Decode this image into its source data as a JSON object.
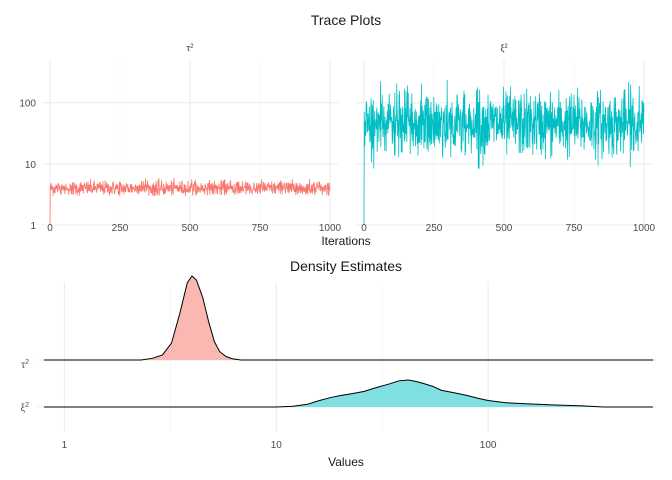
{
  "chart_data": [
    {
      "type": "line",
      "title": "Trace Plots",
      "xlabel": "Iterations",
      "ylabel": "",
      "y_scale": "log10",
      "xlim": [
        0,
        1000
      ],
      "ylim": [
        1,
        500
      ],
      "x_ticks": [
        "0",
        "250",
        "500",
        "750",
        "1000"
      ],
      "y_ticks": [
        "1",
        "10",
        "100"
      ],
      "grid": true,
      "panels": [
        {
          "name": "τ",
          "superscript": "2",
          "color": "#F8766D",
          "start_value": 1,
          "typical_value": 4,
          "range": [
            3,
            6
          ],
          "n_iterations": 1000
        },
        {
          "name": "ξ",
          "superscript": "2",
          "color": "#00BFC4",
          "start_value": 1,
          "typical_value": 45,
          "range": [
            8,
            420
          ],
          "n_iterations": 1000
        }
      ]
    },
    {
      "type": "area",
      "title": "Density Estimates",
      "xlabel": "Values",
      "x_scale": "log10",
      "xlim": [
        0.75,
        620
      ],
      "x_ticks": [
        "1",
        "10",
        "100"
      ],
      "grid": true,
      "series": [
        {
          "name": "τ",
          "superscript": "2",
          "color": "#F8766D",
          "fill": "#FBB7B2",
          "x": [
            2.3,
            2.6,
            2.9,
            3.2,
            3.5,
            3.8,
            4.0,
            4.2,
            4.5,
            4.8,
            5.1,
            5.4,
            5.8,
            6.2,
            6.8
          ],
          "density": [
            0.0,
            0.02,
            0.06,
            0.2,
            0.55,
            0.92,
            1.0,
            0.95,
            0.74,
            0.45,
            0.22,
            0.1,
            0.04,
            0.015,
            0.0
          ],
          "x_range": [
            0.8,
            600
          ]
        },
        {
          "name": "ξ",
          "superscript": "2",
          "color": "#00BFC4",
          "fill": "#7FDFE1",
          "x": [
            10,
            12,
            14,
            16,
            18,
            20,
            23,
            26,
            30,
            34,
            38,
            42,
            46,
            50,
            55,
            60,
            70,
            80,
            90,
            100,
            120,
            150,
            200,
            280,
            350
          ],
          "density": [
            0.0,
            0.03,
            0.1,
            0.24,
            0.35,
            0.42,
            0.5,
            0.58,
            0.73,
            0.85,
            0.97,
            1.0,
            0.94,
            0.86,
            0.76,
            0.62,
            0.52,
            0.42,
            0.32,
            0.24,
            0.16,
            0.12,
            0.08,
            0.04,
            0.0
          ],
          "x_range": [
            0.8,
            600
          ]
        }
      ]
    }
  ]
}
